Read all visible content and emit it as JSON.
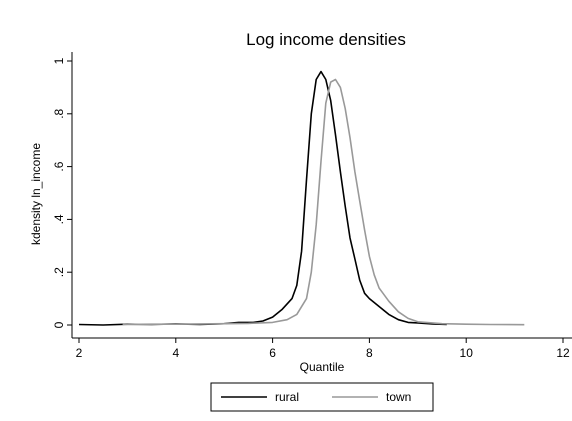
{
  "chart_data": {
    "type": "line",
    "title": "Log income densities",
    "xlabel": "Quantile",
    "ylabel": "kdensity ln_income",
    "xlim": [
      1.9,
      12.2
    ],
    "ylim": [
      -0.02,
      1.0
    ],
    "xticks": [
      2,
      4,
      6,
      8,
      10,
      12
    ],
    "yticks": [
      0,
      0.2,
      0.4,
      0.6,
      0.8,
      1
    ],
    "ytick_labels": [
      "0",
      ".2",
      ".4",
      ".6",
      ".8",
      "1"
    ],
    "grid": false,
    "legend_position": "bottom",
    "series": [
      {
        "name": "rural",
        "color": "#000000",
        "x": [
          2.0,
          2.5,
          3.0,
          3.5,
          4.0,
          4.5,
          5.0,
          5.3,
          5.6,
          5.8,
          6.0,
          6.2,
          6.4,
          6.5,
          6.6,
          6.7,
          6.8,
          6.9,
          7.0,
          7.1,
          7.2,
          7.3,
          7.4,
          7.5,
          7.6,
          7.7,
          7.8,
          7.9,
          8.0,
          8.2,
          8.4,
          8.6,
          8.8,
          9.0,
          9.3,
          9.6
        ],
        "y": [
          0.002,
          0.0,
          0.003,
          0.002,
          0.004,
          0.002,
          0.005,
          0.01,
          0.01,
          0.015,
          0.03,
          0.06,
          0.1,
          0.15,
          0.28,
          0.55,
          0.8,
          0.93,
          0.96,
          0.93,
          0.85,
          0.72,
          0.58,
          0.45,
          0.33,
          0.25,
          0.17,
          0.12,
          0.1,
          0.07,
          0.04,
          0.02,
          0.01,
          0.008,
          0.004,
          0.002
        ]
      },
      {
        "name": "town",
        "color": "#999999",
        "x": [
          2.9,
          3.5,
          4.0,
          4.5,
          5.0,
          5.5,
          6.0,
          6.3,
          6.5,
          6.7,
          6.8,
          6.9,
          7.0,
          7.1,
          7.2,
          7.3,
          7.4,
          7.5,
          7.6,
          7.7,
          7.8,
          7.9,
          8.0,
          8.1,
          8.2,
          8.4,
          8.6,
          8.8,
          9.0,
          9.5,
          10.0,
          10.5,
          11.2
        ],
        "y": [
          0.002,
          0.003,
          0.003,
          0.004,
          0.005,
          0.006,
          0.01,
          0.02,
          0.04,
          0.1,
          0.2,
          0.38,
          0.62,
          0.84,
          0.92,
          0.93,
          0.9,
          0.82,
          0.71,
          0.58,
          0.47,
          0.36,
          0.26,
          0.19,
          0.14,
          0.09,
          0.05,
          0.025,
          0.012,
          0.005,
          0.003,
          0.002,
          0.001
        ]
      }
    ]
  }
}
